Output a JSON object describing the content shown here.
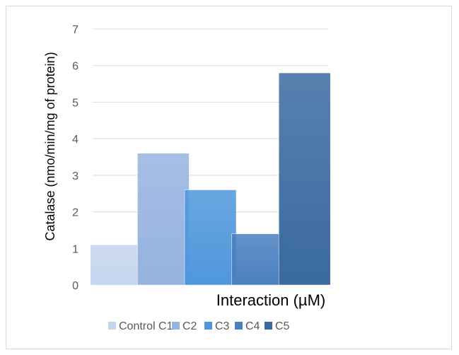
{
  "chart_data": {
    "type": "bar",
    "title": "",
    "xlabel": "Interaction (µM)",
    "ylabel": "Catalase (nmo/min/mg  of protein)",
    "ylim": [
      0,
      7
    ],
    "yticks": [
      0,
      1,
      2,
      3,
      4,
      5,
      6,
      7
    ],
    "grid": true,
    "legend_position": "bottom",
    "categories": [
      "Control C1",
      "C2",
      "C3",
      "C4",
      "C5"
    ],
    "values": [
      1.1,
      3.6,
      2.6,
      1.4,
      5.8
    ],
    "series": [
      {
        "name": "Control C1",
        "value": 1.1,
        "color": "#c5d5ee"
      },
      {
        "name": "C2",
        "value": 3.6,
        "color": "#95b3e0"
      },
      {
        "name": "C3",
        "value": 2.6,
        "color": "#4f97dc"
      },
      {
        "name": "C4",
        "value": 1.4,
        "color": "#4a7fc0"
      },
      {
        "name": "C5",
        "value": 5.8,
        "color": "#3a6aa0"
      }
    ]
  }
}
